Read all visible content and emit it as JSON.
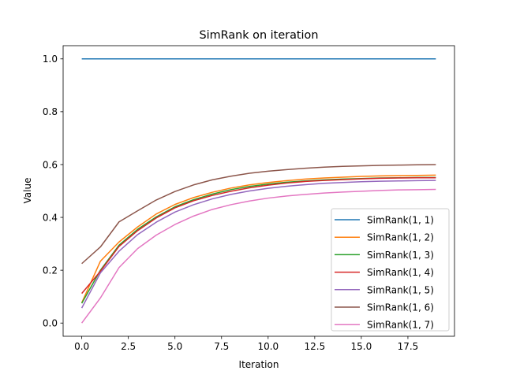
{
  "chart_data": {
    "type": "line",
    "title": "SimRank on iteration",
    "xlabel": "Iteration",
    "ylabel": "Value",
    "xlim": [
      -1,
      20
    ],
    "ylim": [
      -0.05,
      1.05
    ],
    "xticks": [
      0.0,
      2.5,
      5.0,
      7.5,
      10.0,
      12.5,
      15.0,
      17.5
    ],
    "xtick_labels": [
      "0.0",
      "2.5",
      "5.0",
      "7.5",
      "10.0",
      "12.5",
      "15.0",
      "17.5"
    ],
    "yticks": [
      0.0,
      0.2,
      0.4,
      0.6,
      0.8,
      1.0
    ],
    "ytick_labels": [
      "0.0",
      "0.2",
      "0.4",
      "0.6",
      "0.8",
      "1.0"
    ],
    "grid": false,
    "legend_position": "lower-right",
    "x": [
      0,
      1,
      2,
      3,
      4,
      5,
      6,
      7,
      8,
      9,
      10,
      11,
      12,
      13,
      14,
      15,
      16,
      17,
      18,
      19
    ],
    "series": [
      {
        "name": "SimRank(1, 1)",
        "color": "#1f77b4",
        "values": [
          1.0,
          1.0,
          1.0,
          1.0,
          1.0,
          1.0,
          1.0,
          1.0,
          1.0,
          1.0,
          1.0,
          1.0,
          1.0,
          1.0,
          1.0,
          1.0,
          1.0,
          1.0,
          1.0,
          1.0
        ]
      },
      {
        "name": "SimRank(1, 2)",
        "color": "#ff7f0e",
        "values": [
          0.077,
          0.234,
          0.307,
          0.364,
          0.413,
          0.449,
          0.475,
          0.495,
          0.511,
          0.523,
          0.532,
          0.539,
          0.545,
          0.549,
          0.552,
          0.555,
          0.557,
          0.558,
          0.559,
          0.56
        ]
      },
      {
        "name": "SimRank(1, 3)",
        "color": "#2ca02c",
        "values": [
          0.075,
          0.2,
          0.295,
          0.355,
          0.402,
          0.44,
          0.467,
          0.488,
          0.505,
          0.517,
          0.526,
          0.533,
          0.538,
          0.542,
          0.545,
          0.547,
          0.549,
          0.55,
          0.551,
          0.551
        ]
      },
      {
        "name": "SimRank(1, 4)",
        "color": "#d62728",
        "values": [
          0.112,
          0.196,
          0.29,
          0.35,
          0.398,
          0.436,
          0.463,
          0.483,
          0.499,
          0.512,
          0.522,
          0.53,
          0.536,
          0.54,
          0.543,
          0.546,
          0.548,
          0.549,
          0.55,
          0.55
        ]
      },
      {
        "name": "SimRank(1, 5)",
        "color": "#9467bd",
        "values": [
          0.057,
          0.19,
          0.272,
          0.335,
          0.382,
          0.42,
          0.448,
          0.47,
          0.487,
          0.5,
          0.51,
          0.518,
          0.524,
          0.529,
          0.532,
          0.535,
          0.537,
          0.538,
          0.539,
          0.54
        ]
      },
      {
        "name": "SimRank(1, 6)",
        "color": "#8c564b",
        "values": [
          0.225,
          0.288,
          0.383,
          0.425,
          0.466,
          0.498,
          0.523,
          0.542,
          0.556,
          0.567,
          0.575,
          0.581,
          0.586,
          0.59,
          0.593,
          0.595,
          0.597,
          0.598,
          0.599,
          0.6
        ]
      },
      {
        "name": "SimRank(1, 7)",
        "color": "#e377c2",
        "values": [
          0.0,
          0.095,
          0.21,
          0.282,
          0.333,
          0.373,
          0.405,
          0.43,
          0.448,
          0.462,
          0.473,
          0.481,
          0.487,
          0.492,
          0.496,
          0.499,
          0.502,
          0.504,
          0.505,
          0.506
        ]
      }
    ]
  }
}
